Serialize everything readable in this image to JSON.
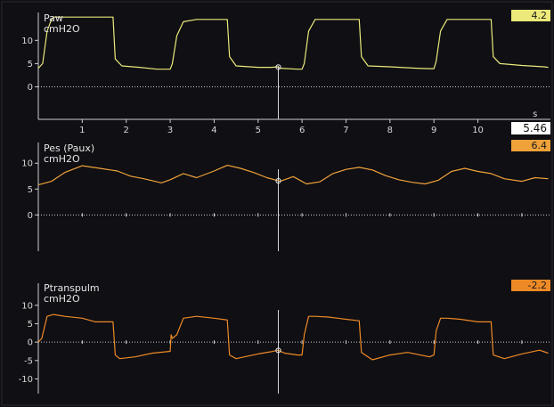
{
  "cursor": {
    "time_value": "5.46"
  },
  "channels": [
    {
      "name": "Paw",
      "unit": "cmH2O",
      "value": "4.2",
      "badge_color": "#ece97a",
      "wave_color": "#ece97a",
      "y_ticks": [
        "10",
        "5",
        "0"
      ],
      "x_ticks": [
        "1",
        "2",
        "3",
        "4",
        "5",
        "6",
        "7",
        "8",
        "9",
        "10"
      ],
      "x_unit": "s"
    },
    {
      "name": "Pes (Paux)",
      "unit": "cmH2O",
      "value": "6.4",
      "badge_color": "#f0a23a",
      "wave_color": "#f0a23a",
      "y_ticks": [
        "10",
        "5",
        "0"
      ]
    },
    {
      "name": "Ptranspulm",
      "unit": "cmH2O",
      "value": "-2.2",
      "badge_color": "#ee8a26",
      "wave_color": "#ee8a26",
      "y_ticks": [
        "10",
        "5",
        "0",
        "-5",
        "-10"
      ]
    }
  ],
  "chart_data": [
    {
      "type": "line",
      "title": "Paw",
      "ylabel": "cmH2O",
      "xlabel": "s",
      "ylim": [
        -7,
        16
      ],
      "series": [
        {
          "name": "Paw",
          "x": [
            0,
            0.1,
            0.2,
            0.3,
            0.35,
            0.5,
            1.0,
            1.5,
            1.7,
            1.75,
            1.9,
            2.3,
            2.7,
            3.0,
            3.05,
            3.15,
            3.3,
            3.6,
            4.0,
            4.3,
            4.35,
            4.5,
            5.0,
            5.3,
            5.45,
            5.5,
            5.9,
            6.0,
            6.05,
            6.15,
            6.3,
            6.7,
            7.0,
            7.3,
            7.35,
            7.5,
            8.0,
            8.6,
            8.9,
            9.0,
            9.05,
            9.15,
            9.3,
            9.6,
            10.0,
            10.3,
            10.35,
            10.5,
            11.0,
            11.5,
            11.6
          ],
          "y": [
            4,
            5,
            12,
            14.5,
            15,
            15,
            15,
            15,
            15,
            6,
            4.5,
            4.2,
            3.8,
            3.8,
            5,
            11,
            14,
            14.5,
            14.5,
            14.5,
            6.5,
            4.5,
            4.2,
            4.2,
            4.3,
            4,
            3.8,
            3.8,
            5,
            12,
            14.5,
            14.5,
            14.5,
            14.5,
            6.5,
            4.5,
            4.3,
            4,
            3.9,
            3.9,
            5.5,
            12,
            14.5,
            14.5,
            14.5,
            14.5,
            6.5,
            5,
            4.6,
            4.3,
            4.2
          ]
        }
      ]
    },
    {
      "type": "line",
      "title": "Pes (Paux)",
      "ylabel": "cmH2O",
      "ylim": [
        -7,
        14
      ],
      "series": [
        {
          "name": "Pes (Paux)",
          "x": [
            0,
            0.3,
            0.6,
            1.0,
            1.4,
            1.8,
            2.1,
            2.4,
            2.8,
            3.0,
            3.3,
            3.6,
            4.0,
            4.3,
            4.6,
            4.9,
            5.2,
            5.5,
            5.8,
            6.1,
            6.4,
            6.7,
            7.0,
            7.3,
            7.6,
            7.9,
            8.2,
            8.5,
            8.8,
            9.1,
            9.4,
            9.7,
            10.0,
            10.3,
            10.6,
            11.0,
            11.3,
            11.6
          ],
          "y": [
            5.8,
            6.5,
            8.2,
            9.5,
            9.0,
            8.5,
            7.5,
            7.0,
            6.2,
            6.8,
            8.0,
            7.2,
            8.5,
            9.6,
            9.0,
            8.2,
            7.2,
            6.5,
            7.4,
            6.0,
            6.4,
            8.0,
            8.8,
            9.2,
            8.7,
            7.6,
            6.8,
            6.3,
            6.0,
            6.7,
            8.4,
            9.0,
            8.4,
            8.0,
            7.0,
            6.5,
            7.2,
            7.0
          ]
        }
      ]
    },
    {
      "type": "line",
      "title": "Ptranspulm",
      "ylabel": "cmH2O",
      "ylim": [
        -14,
        16
      ],
      "series": [
        {
          "name": "Ptranspulm",
          "x": [
            0,
            0.08,
            0.12,
            0.2,
            0.35,
            0.6,
            1.0,
            1.3,
            1.5,
            1.7,
            1.75,
            1.85,
            2.2,
            2.6,
            3.0,
            3.02,
            3.05,
            3.15,
            3.3,
            3.6,
            4.0,
            4.3,
            4.35,
            4.5,
            5.0,
            5.3,
            5.45,
            5.6,
            5.9,
            6.0,
            6.05,
            6.15,
            6.3,
            6.6,
            7.0,
            7.3,
            7.35,
            7.6,
            8.0,
            8.4,
            8.9,
            9.0,
            9.05,
            9.15,
            9.3,
            9.6,
            10.0,
            10.3,
            10.35,
            10.6,
            11.0,
            11.4,
            11.6
          ],
          "y": [
            0,
            1,
            3,
            7,
            7.5,
            7,
            6.5,
            5.5,
            5.5,
            5.5,
            -3.5,
            -4.5,
            -4.0,
            -3.0,
            -2.5,
            2,
            1,
            2,
            6.5,
            7,
            6.5,
            6,
            -3.5,
            -4.5,
            -3.2,
            -2.6,
            -2.2,
            -3.0,
            -3.5,
            -3.5,
            2,
            7,
            7,
            6.8,
            6.2,
            5.8,
            -2.8,
            -4.8,
            -3.5,
            -2.8,
            -4.0,
            -3.5,
            3,
            6.5,
            6.5,
            6.2,
            5.5,
            5.5,
            -3.5,
            -4.5,
            -3.2,
            -2.2,
            -3.0
          ]
        }
      ]
    }
  ]
}
